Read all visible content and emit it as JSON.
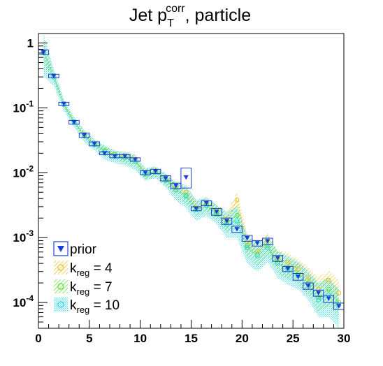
{
  "chart_data": {
    "type": "line",
    "title": {
      "main": "Jet p",
      "sub": "T",
      "sup": "corr",
      "rest": ", particle"
    },
    "xlabel": "",
    "ylabel": "",
    "xlim": [
      0,
      30
    ],
    "ylim": [
      4e-05,
      1.4
    ],
    "yscale": "log",
    "grid": false,
    "legend_position": "bottom-left",
    "x_ticks": [
      0,
      5,
      10,
      15,
      20,
      25,
      30
    ],
    "x_tick_labels": [
      "0",
      "5",
      "10",
      "15",
      "20",
      "25",
      "30"
    ],
    "y_ticks": [
      {
        "value": 1,
        "base": "1",
        "exp": ""
      },
      {
        "value": 0.1,
        "base": "10",
        "exp": "-1"
      },
      {
        "value": 0.01,
        "base": "10",
        "exp": "-2"
      },
      {
        "value": 0.001,
        "base": "10",
        "exp": "-3"
      },
      {
        "value": 0.0001,
        "base": "10",
        "exp": "-4"
      }
    ],
    "bin_edges": [
      0,
      1,
      2,
      3,
      4,
      5,
      6,
      7,
      8,
      9,
      10,
      11,
      12,
      13,
      14,
      15,
      16,
      17,
      18,
      19,
      20,
      21,
      22,
      23,
      24,
      25,
      26,
      27,
      28,
      29,
      30
    ],
    "series": [
      {
        "name": "prior",
        "label_main": "prior",
        "label_sub": "",
        "label_rest": "",
        "color": "#1a3fd6",
        "style": "box",
        "values": [
          0.72,
          0.31,
          0.115,
          0.06,
          0.038,
          0.028,
          0.02,
          0.018,
          0.018,
          0.016,
          0.01,
          0.0105,
          0.0082,
          0.0063,
          0.0085,
          0.0028,
          0.0034,
          0.0025,
          0.0018,
          0.00135,
          0.00098,
          0.00082,
          0.00088,
          0.00048,
          0.00033,
          0.00025,
          0.00018,
          0.00014,
          0.000115,
          8.8e-05
        ],
        "box_low": [
          0.66,
          0.29,
          0.108,
          0.056,
          0.035,
          0.026,
          0.019,
          0.017,
          0.017,
          0.015,
          0.0093,
          0.0097,
          0.0075,
          0.0057,
          0.0058,
          0.0026,
          0.0031,
          0.0022,
          0.0016,
          0.0012,
          0.00088,
          0.00074,
          0.00078,
          0.00043,
          0.0003,
          0.00022,
          0.00016,
          0.000125,
          0.0001,
          7.8e-05
        ],
        "box_high": [
          0.78,
          0.33,
          0.122,
          0.064,
          0.041,
          0.03,
          0.021,
          0.019,
          0.019,
          0.017,
          0.0108,
          0.0113,
          0.009,
          0.0069,
          0.0118,
          0.003,
          0.0037,
          0.0028,
          0.002,
          0.0015,
          0.00108,
          0.0009,
          0.00098,
          0.00053,
          0.00036,
          0.00028,
          0.0002,
          0.000155,
          0.00013,
          9.8e-05
        ]
      },
      {
        "name": "k_reg = 4",
        "label_main": "k",
        "label_sub": "reg",
        "label_rest": " = 4",
        "color": "#f0c020",
        "style": "band",
        "values": [
          0.74,
          0.3,
          0.112,
          0.06,
          0.039,
          0.028,
          0.021,
          0.019,
          0.018,
          0.016,
          0.0098,
          0.0108,
          0.008,
          0.0058,
          0.005,
          0.0029,
          0.0034,
          0.0026,
          0.0019,
          0.0038,
          0.00085,
          0.0006,
          0.0009,
          0.00047,
          0.00042,
          0.00033,
          0.00024,
          0.00016,
          0.00022,
          0.00014
        ],
        "band_low": [
          0.55,
          0.26,
          0.1,
          0.054,
          0.034,
          0.025,
          0.018,
          0.016,
          0.015,
          0.013,
          0.0082,
          0.009,
          0.0066,
          0.0046,
          0.0038,
          0.0022,
          0.0027,
          0.002,
          0.0014,
          0.0025,
          0.00055,
          0.0004,
          0.00062,
          0.00032,
          0.00028,
          0.00022,
          0.00015,
          0.0001,
          0.00012,
          6e-05
        ],
        "band_high": [
          1.0,
          0.35,
          0.125,
          0.067,
          0.044,
          0.032,
          0.024,
          0.022,
          0.021,
          0.019,
          0.0115,
          0.0125,
          0.0095,
          0.007,
          0.0064,
          0.0036,
          0.0042,
          0.0032,
          0.0025,
          0.005,
          0.00115,
          0.00085,
          0.0012,
          0.00065,
          0.00058,
          0.00046,
          0.00035,
          0.00024,
          0.00032,
          0.00022
        ]
      },
      {
        "name": "k_reg = 7",
        "label_main": "k",
        "label_sub": "reg",
        "label_rest": " = 7",
        "color": "#5fe030",
        "style": "band",
        "values": [
          0.72,
          0.31,
          0.113,
          0.061,
          0.038,
          0.028,
          0.022,
          0.019,
          0.017,
          0.015,
          0.0095,
          0.0102,
          0.0078,
          0.0055,
          0.0045,
          0.0028,
          0.0032,
          0.0024,
          0.0017,
          0.0022,
          0.00075,
          0.00055,
          0.00075,
          0.00042,
          0.00035,
          0.00028,
          0.0002,
          0.00012,
          0.00016,
          0.0001
        ],
        "band_low": [
          0.5,
          0.25,
          0.1,
          0.054,
          0.033,
          0.024,
          0.018,
          0.016,
          0.014,
          0.012,
          0.0078,
          0.0085,
          0.0063,
          0.0042,
          0.0033,
          0.0021,
          0.0025,
          0.0018,
          0.0012,
          0.0014,
          0.00048,
          0.00036,
          0.0005,
          0.00028,
          0.00023,
          0.00019,
          0.00013,
          7e-05,
          9e-05,
          5e-05
        ],
        "band_high": [
          1.1,
          0.37,
          0.127,
          0.068,
          0.043,
          0.032,
          0.026,
          0.022,
          0.02,
          0.018,
          0.0112,
          0.012,
          0.0094,
          0.0068,
          0.0058,
          0.0035,
          0.004,
          0.0031,
          0.0023,
          0.0032,
          0.00105,
          0.00078,
          0.00105,
          0.0006,
          0.0005,
          0.0004,
          0.00029,
          0.00019,
          0.00025,
          0.00016
        ]
      },
      {
        "name": "k_reg = 10",
        "label_main": "k",
        "label_sub": "reg",
        "label_rest": " = 10",
        "color": "#30d8e8",
        "style": "band",
        "values": [
          0.73,
          0.3,
          0.114,
          0.06,
          0.037,
          0.027,
          0.021,
          0.018,
          0.017,
          0.015,
          0.0097,
          0.0104,
          0.0076,
          0.0054,
          0.0043,
          0.0027,
          0.0031,
          0.0023,
          0.0016,
          0.0018,
          0.0007,
          0.00052,
          0.0007,
          0.0004,
          0.00032,
          0.00026,
          0.00019,
          0.00011,
          0.00013,
          9e-05
        ],
        "band_low": [
          0.3,
          0.22,
          0.09,
          0.05,
          0.03,
          0.022,
          0.016,
          0.014,
          0.013,
          0.011,
          0.0075,
          0.0082,
          0.0058,
          0.0038,
          0.0028,
          0.0018,
          0.0022,
          0.0016,
          0.001,
          0.001,
          0.0004,
          0.0003,
          0.00042,
          0.00024,
          0.00019,
          0.00016,
          0.00011,
          6e-05,
          6e-05,
          4e-05
        ],
        "band_high": [
          1.4,
          0.4,
          0.135,
          0.072,
          0.045,
          0.033,
          0.026,
          0.022,
          0.021,
          0.019,
          0.0118,
          0.0126,
          0.0098,
          0.0072,
          0.0064,
          0.0038,
          0.0042,
          0.0032,
          0.0025,
          0.003,
          0.0011,
          0.0008,
          0.0011,
          0.00062,
          0.00052,
          0.00042,
          0.00031,
          0.0002,
          0.00024,
          0.00016
        ]
      }
    ]
  }
}
